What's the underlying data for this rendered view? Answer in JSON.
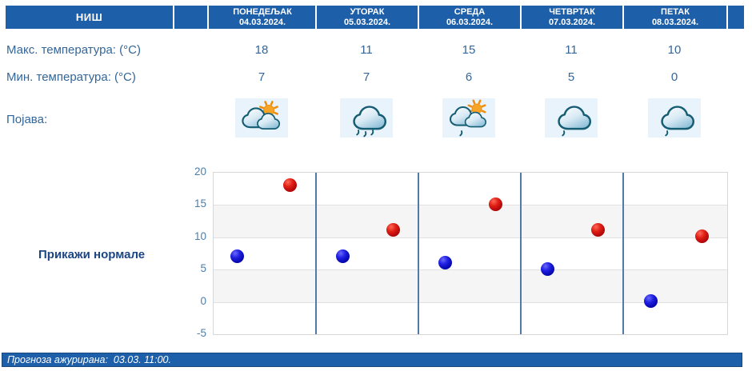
{
  "station": {
    "name": "НИШ"
  },
  "columns": [
    {
      "day": "ПОНЕДЕЉАК",
      "date": "04.03.2024.",
      "max": 18,
      "min": 7,
      "icon": "sun-clouds"
    },
    {
      "day": "УТОРАК",
      "date": "05.03.2024.",
      "max": 11,
      "min": 7,
      "icon": "rain"
    },
    {
      "day": "СРЕДА",
      "date": "06.03.2024.",
      "max": 15,
      "min": 6,
      "icon": "sun-clouds-light-rain"
    },
    {
      "day": "ЧЕТВРТАК",
      "date": "07.03.2024.",
      "max": 11,
      "min": 5,
      "icon": "cloud-light-rain"
    },
    {
      "day": "ПЕТАК",
      "date": "08.03.2024.",
      "max": 10,
      "min": 0,
      "icon": "cloud-light-rain"
    }
  ],
  "rows": {
    "max_label": "Макс. температура: (°C)",
    "min_label": "Мин. температура: (°C)",
    "phenomenon_label": "Појава:"
  },
  "normals_label": "Прикажи нормале",
  "footer": {
    "text": "Прогноза ажурирана:  03.03. 11:00."
  },
  "chart_data": {
    "type": "scatter",
    "categories": [
      "ПОНЕДЕЉАК 04.03.2024.",
      "УТОРАК 05.03.2024.",
      "СРЕДА 06.03.2024.",
      "ЧЕТВРТАК 07.03.2024.",
      "ПЕТАК 08.03.2024."
    ],
    "series": [
      {
        "name": "Мин. температура (°C)",
        "color": "#1414cc",
        "values": [
          7,
          7,
          6,
          5,
          0
        ]
      },
      {
        "name": "Макс. температура (°C)",
        "color": "#c00d0d",
        "values": [
          18,
          11,
          15,
          11,
          10
        ]
      }
    ],
    "ylim": [
      -5,
      20
    ],
    "yticks": [
      20,
      15,
      10,
      5,
      0,
      -5
    ],
    "grid": "horizontal",
    "band_fill": "alternating-gray",
    "legend": "none"
  },
  "colors": {
    "header_blue": "#1e5fa9",
    "text_blue": "#336699",
    "link_navy": "#1c4584",
    "axis_label": "#4d7ea8",
    "day_separator": "#527ba4",
    "icon_background": "#e9f3fb",
    "dot_max": "#c00d0d",
    "dot_min": "#0d0dc0"
  }
}
